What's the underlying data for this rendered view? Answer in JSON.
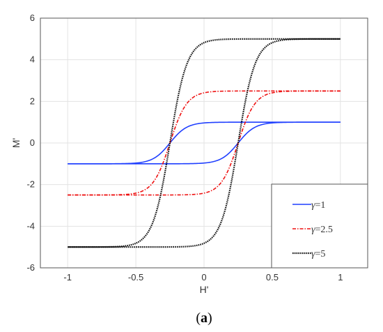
{
  "chart_data": {
    "type": "line",
    "title": "",
    "xlabel": "H'",
    "ylabel": "M'",
    "xlim": [
      -1.2,
      1.2
    ],
    "ylim": [
      -6,
      6
    ],
    "xticks": [
      -1,
      -0.5,
      0,
      0.5,
      1
    ],
    "xtick_labels": [
      "-1",
      "-0.5",
      "0",
      "0.5",
      "1"
    ],
    "yticks": [
      -6,
      -4,
      -2,
      0,
      2,
      4,
      6
    ],
    "ytick_labels": [
      "-6",
      "-4",
      "-2",
      "0",
      "2",
      "4",
      "6"
    ],
    "grid": true,
    "legend_position": "bottom-right",
    "series": [
      {
        "name": "γ=1",
        "label_symbol": "γ",
        "label_rest": "=1",
        "color": "#1f3fff",
        "style": "solid",
        "saturation": 1,
        "coercivity": 0.25,
        "steepness": 8,
        "x": [
          -1,
          -0.8,
          -0.6,
          -0.5,
          -0.4,
          -0.3,
          -0.25,
          -0.2,
          -0.1,
          0,
          0.1,
          0.2,
          0.25,
          0.3,
          0.4,
          0.5,
          0.6,
          0.8,
          1
        ],
        "ascending_branch": [
          -1,
          -1,
          -1,
          -0.99,
          -0.98,
          -0.96,
          -0.95,
          -0.93,
          -0.88,
          -0.79,
          -0.62,
          -0.2,
          0,
          0.2,
          0.62,
          0.88,
          0.97,
          1,
          1
        ],
        "descending_branch": [
          -1,
          -1,
          -0.97,
          -0.88,
          -0.62,
          -0.2,
          0,
          0.2,
          0.62,
          0.79,
          0.88,
          0.93,
          0.95,
          0.96,
          0.98,
          0.99,
          1,
          1,
          1
        ]
      },
      {
        "name": "γ=2.5",
        "label_symbol": "γ",
        "label_rest": "=2.5",
        "color": "#ee1111",
        "style": "dashdot",
        "saturation": 2.5,
        "coercivity": 0.25,
        "steepness": 8,
        "x": [
          -1,
          -0.8,
          -0.6,
          -0.5,
          -0.4,
          -0.3,
          -0.25,
          -0.2,
          -0.1,
          0,
          0.1,
          0.2,
          0.25,
          0.3,
          0.4,
          0.5,
          0.6,
          0.8,
          1
        ],
        "ascending_branch": [
          -2.5,
          -2.5,
          -2.49,
          -2.47,
          -2.44,
          -2.4,
          -2.37,
          -2.33,
          -2.2,
          -1.98,
          -1.54,
          -0.49,
          0,
          0.49,
          1.54,
          2.2,
          2.44,
          2.5,
          2.5
        ],
        "descending_branch": [
          -2.5,
          -2.49,
          -2.44,
          -2.2,
          -1.54,
          -0.49,
          0,
          0.49,
          1.54,
          1.98,
          2.2,
          2.33,
          2.37,
          2.4,
          2.44,
          2.47,
          2.49,
          2.5,
          2.5
        ]
      },
      {
        "name": "γ=5",
        "label_symbol": "γ",
        "label_rest": "=5",
        "color": "#111111",
        "style": "dotted",
        "saturation": 5,
        "coercivity": 0.25,
        "steepness": 8,
        "x": [
          -1,
          -0.8,
          -0.6,
          -0.5,
          -0.4,
          -0.3,
          -0.25,
          -0.2,
          -0.1,
          0,
          0.1,
          0.2,
          0.25,
          0.3,
          0.4,
          0.5,
          0.6,
          0.8,
          1
        ],
        "ascending_branch": [
          -5,
          -5,
          -4.99,
          -4.94,
          -4.87,
          -4.8,
          -4.74,
          -4.66,
          -4.41,
          -3.95,
          -3.09,
          -0.99,
          0,
          0.99,
          3.09,
          4.41,
          4.87,
          5,
          5
        ],
        "descending_branch": [
          -5,
          -4.99,
          -4.87,
          -4.41,
          -3.09,
          -0.99,
          0,
          0.99,
          3.09,
          3.95,
          4.41,
          4.66,
          4.74,
          4.8,
          4.87,
          4.94,
          4.99,
          5,
          5
        ]
      }
    ]
  },
  "caption": {
    "open": "(",
    "letter": "a",
    "close": ")"
  }
}
